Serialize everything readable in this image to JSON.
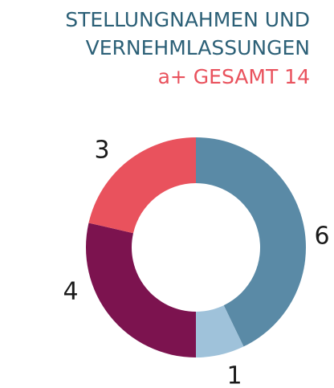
{
  "chart_data": {
    "type": "donut",
    "title": [
      "STELLUNGNAHMEN UND",
      "VERNEHMLASSUNGEN"
    ],
    "subtitle": "a+ GESAMT 14",
    "categories": [
      null,
      null,
      null,
      null
    ],
    "values": [
      6,
      1,
      4,
      3
    ],
    "colors": [
      "#5a8aa6",
      "#9fc2da",
      "#7c134f",
      "#e9525d"
    ]
  }
}
